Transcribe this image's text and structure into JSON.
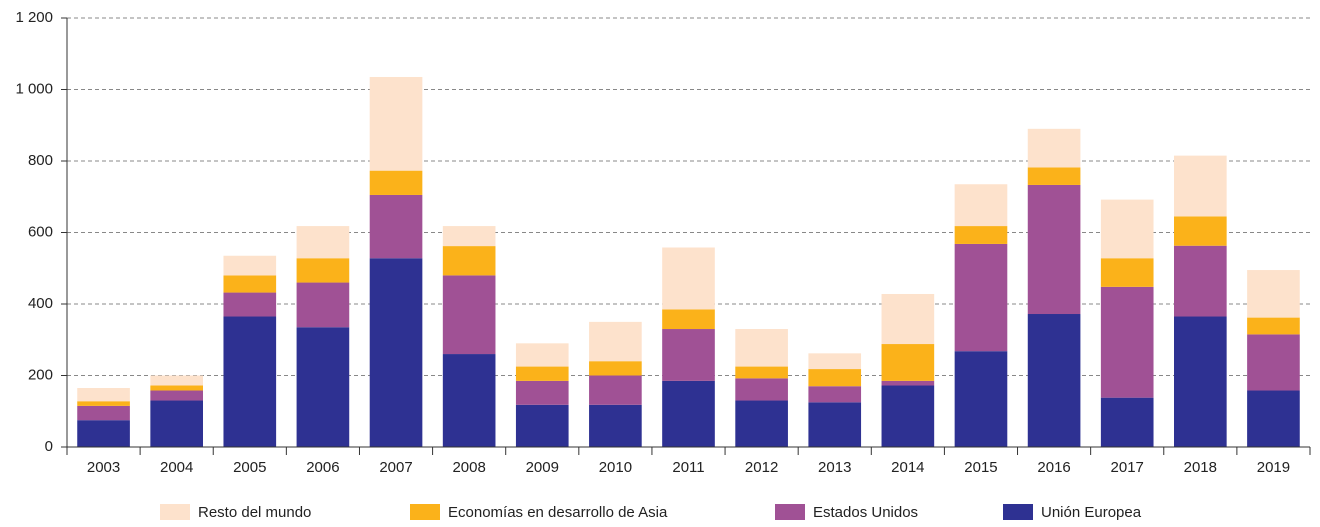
{
  "chart_data": {
    "type": "stacked_bar",
    "categories": [
      "2003",
      "2004",
      "2005",
      "2006",
      "2007",
      "2008",
      "2009",
      "2010",
      "2011",
      "2012",
      "2013",
      "2014",
      "2015",
      "2016",
      "2017",
      "2018",
      "2019"
    ],
    "series": [
      {
        "name": "Unión Europea",
        "color": "#2e3192",
        "values": [
          75,
          130,
          365,
          335,
          528,
          260,
          118,
          118,
          185,
          130,
          125,
          172,
          268,
          372,
          138,
          365,
          158
        ]
      },
      {
        "name": "Estados Unidos",
        "color": "#a05195",
        "values": [
          40,
          28,
          67,
          125,
          177,
          220,
          67,
          82,
          145,
          62,
          45,
          13,
          300,
          361,
          310,
          198,
          157
        ]
      },
      {
        "name": "Economías en desarrollo de Asia",
        "color": "#fbb21a",
        "values": [
          13,
          14,
          48,
          68,
          68,
          82,
          40,
          40,
          55,
          33,
          48,
          103,
          50,
          49,
          80,
          82,
          47
        ]
      },
      {
        "name": "Resto del mundo",
        "color": "#fde2cc",
        "values": [
          37,
          28,
          55,
          90,
          262,
          56,
          65,
          110,
          173,
          105,
          44,
          140,
          117,
          108,
          164,
          170,
          133
        ]
      }
    ],
    "ylim": [
      0,
      1200
    ],
    "yticks": [
      0,
      200,
      400,
      600,
      800,
      {
        "value": 1000,
        "label": "1 000"
      },
      {
        "value": 1200,
        "label": "1 200"
      }
    ],
    "grid": true,
    "legend": "bottom"
  }
}
